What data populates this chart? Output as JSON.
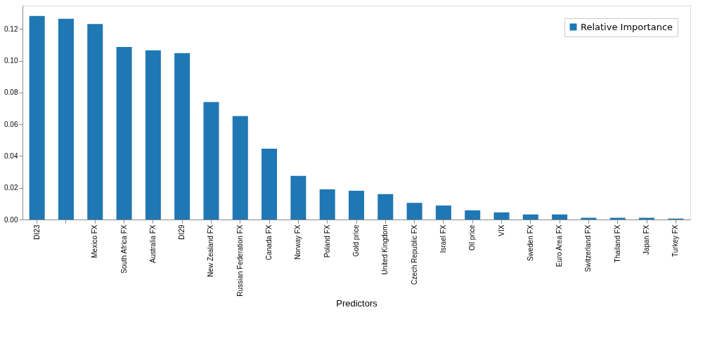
{
  "chart_data": {
    "type": "bar",
    "xlabel": "Predictors",
    "categories": [
      "DI23",
      null,
      "Mexico FX",
      "South Africa FX",
      "Australia FX",
      "DI29",
      "New Zealand FX",
      "Russian Federation FX",
      "Canada FX",
      "Norway FX",
      "Poland FX",
      "Gold price",
      "United Kingdom",
      "Czech Republic FX",
      "Israel FX",
      "Oil price",
      "VIX",
      "Sweden FX",
      "Euro Area FX",
      "Switzerland FX",
      "Thailand FX",
      "Japan FX",
      "Turkey FX"
    ],
    "series": [
      {
        "name": "Relative Importance",
        "color": "#1f77b4",
        "values": [
          0.1282,
          0.1264,
          0.1231,
          0.1086,
          0.1065,
          0.1048,
          0.074,
          0.0651,
          0.0446,
          0.0275,
          0.019,
          0.0181,
          0.016,
          0.0105,
          0.0088,
          0.0058,
          0.0045,
          0.0032,
          0.0032,
          0.0011,
          0.0011,
          0.0011,
          0.0006
        ]
      }
    ],
    "ylim": [
      0,
      0.1347
    ],
    "yticks": [
      {
        "value": 0,
        "label": "0.00"
      },
      0.02,
      0.04,
      0.06,
      0.08,
      {
        "value": 0.1,
        "label": "0.10"
      },
      0.12
    ],
    "legend": "top right",
    "grid": false
  }
}
